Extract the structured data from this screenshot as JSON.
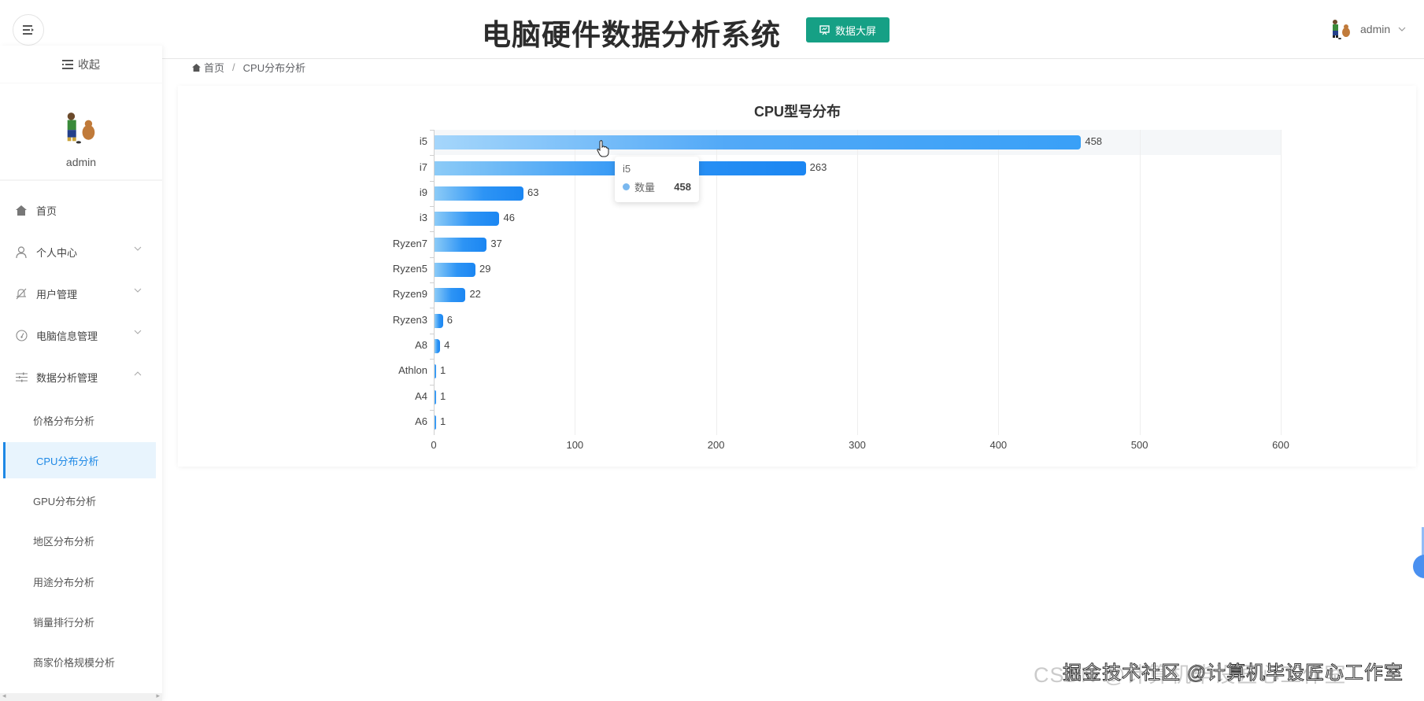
{
  "header": {
    "title": "电脑硬件数据分析系统",
    "bigscreen_label": "数据大屏",
    "username": "admin"
  },
  "sidebar": {
    "collapse_label": "收起",
    "username": "admin",
    "items": [
      {
        "label": "首页",
        "icon": "home-icon"
      },
      {
        "label": "个人中心",
        "icon": "user-icon",
        "expandable": true
      },
      {
        "label": "用户管理",
        "icon": "bell-off-icon",
        "expandable": true
      },
      {
        "label": "电脑信息管理",
        "icon": "gauge-icon",
        "expandable": true
      },
      {
        "label": "数据分析管理",
        "icon": "sliders-icon",
        "expandable": true,
        "expanded": true
      }
    ],
    "sub_items": [
      {
        "label": "价格分布分析"
      },
      {
        "label": "CPU分布分析",
        "active": true
      },
      {
        "label": "GPU分布分析"
      },
      {
        "label": "地区分布分析"
      },
      {
        "label": "用途分布分析"
      },
      {
        "label": "销量排行分析"
      },
      {
        "label": "商家价格规模分析"
      }
    ]
  },
  "breadcrumb": {
    "home": "首页",
    "separator": "/",
    "current": "CPU分布分析"
  },
  "tooltip": {
    "category": "i5",
    "series_name": "数量",
    "value": "458"
  },
  "watermark": {
    "text1": "CSDN @计算机毕设匠心工作室",
    "text2": "掘金技术社区 @计算机毕设匠心工作室"
  },
  "colors": {
    "accent": "#1e88e5",
    "bar": "#1b86f2",
    "bigscreen_btn": "#16a085",
    "active_bg": "#e8f4fd"
  },
  "chart_data": {
    "type": "bar",
    "orientation": "horizontal",
    "title": "CPU型号分布",
    "categories": [
      "i5",
      "i7",
      "i9",
      "i3",
      "Ryzen7",
      "Ryzen5",
      "Ryzen9",
      "Ryzen3",
      "A8",
      "Athlon",
      "A4",
      "A6"
    ],
    "series": [
      {
        "name": "数量",
        "values": [
          458,
          263,
          63,
          46,
          37,
          29,
          22,
          6,
          4,
          1,
          1,
          1
        ]
      }
    ],
    "xlabel": "",
    "ylabel": "",
    "xlim": [
      0,
      600
    ],
    "x_ticks": [
      "0",
      "100",
      "200",
      "300",
      "400",
      "500",
      "600"
    ],
    "grid": true,
    "data_labels": true,
    "hovered_category": "i5"
  }
}
